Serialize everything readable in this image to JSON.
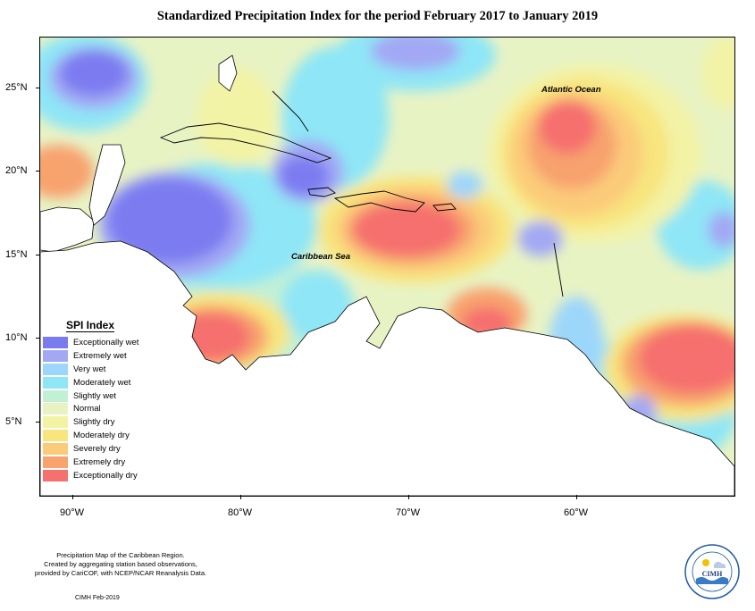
{
  "title": "Standardized Precipitation Index for the period February 2017 to January 2019",
  "map_labels": {
    "atlantic": "Atlantic Ocean",
    "caribbean": "Caribbean Sea"
  },
  "lat_labels": [
    "25°N",
    "20°N",
    "15°N",
    "10°N",
    "5°N"
  ],
  "lon_labels": [
    "90°W",
    "80°W",
    "70°W",
    "60°W"
  ],
  "legend": {
    "title": "SPI Index",
    "items": [
      {
        "label": "Exceptionally wet",
        "color": "#7b7bf0"
      },
      {
        "label": "Extremely wet",
        "color": "#a3a8f4"
      },
      {
        "label": "Very wet",
        "color": "#9dd6fb"
      },
      {
        "label": "Moderately wet",
        "color": "#8ee6f6"
      },
      {
        "label": "Slightly wet",
        "color": "#c2f0d5"
      },
      {
        "label": "Normal",
        "color": "#e8f3c4"
      },
      {
        "label": "Slightly dry",
        "color": "#f3f3a6"
      },
      {
        "label": "Moderately dry",
        "color": "#f8e57e"
      },
      {
        "label": "Severely dry",
        "color": "#fbcb7a"
      },
      {
        "label": "Extremely dry",
        "color": "#f8a26e"
      },
      {
        "label": "Exceptionally dry",
        "color": "#f5706e"
      }
    ]
  },
  "footer": {
    "line1": "Precipitation Map of the Caribbean Region.",
    "line2": "Created by aggregating station based observations,",
    "line3": "provided by CariCOF, with NCEP/NCAR Reanalysis Data.",
    "date": "CIMH Feb-2019"
  },
  "logo": {
    "text": "CIMH"
  }
}
